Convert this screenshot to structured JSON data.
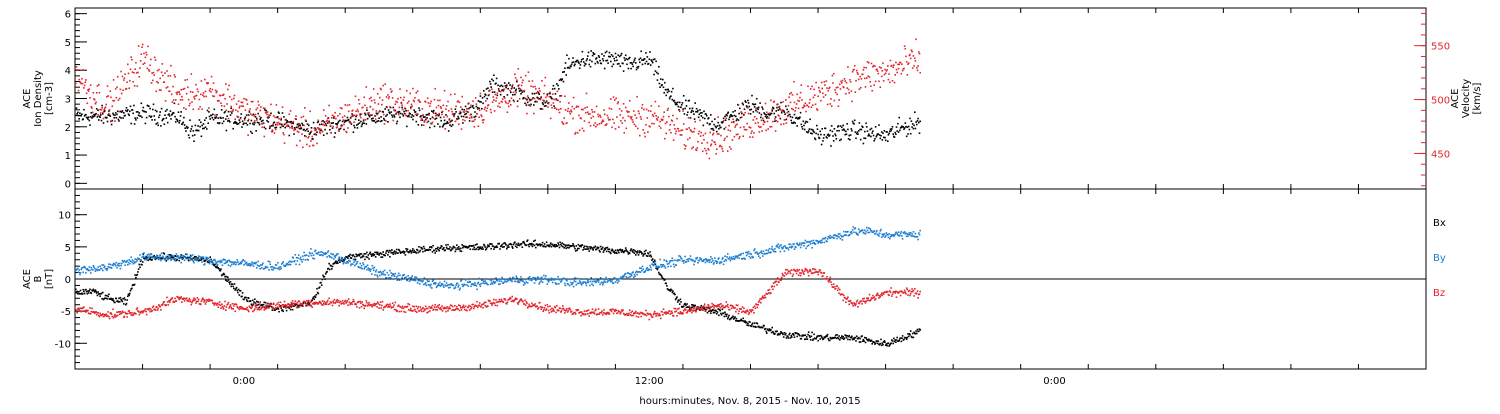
{
  "footer": {
    "xlabel": "hours:minutes, Nov.  8, 2015 - Nov. 10, 2015"
  },
  "x_axis": {
    "range_hours": [
      -5,
      35
    ],
    "ticks": [
      {
        "at": 0,
        "label": "0:00"
      },
      {
        "at": 12,
        "label": "12:00"
      },
      {
        "at": 24,
        "label": "0:00"
      }
    ],
    "minor_every_hours": 2
  },
  "colors": {
    "black": "#000000",
    "red": "#e3242b",
    "blue": "#1f7fd1",
    "axis": "#000000"
  },
  "chart_data": [
    {
      "type": "scatter",
      "panel": "top",
      "ylabel": [
        "ACE",
        "Ion Density",
        "[cm-3]"
      ],
      "ylim": [
        -0.2,
        6.2
      ],
      "yticks": [
        0,
        1,
        2,
        3,
        4,
        5,
        6
      ],
      "y2label": [
        "ACE",
        "Velocity",
        "[km/s]"
      ],
      "y2lim": [
        417,
        585
      ],
      "y2ticks": [
        450,
        500,
        550
      ],
      "series": [
        {
          "axis": "left",
          "color": "black",
          "noise": 0.28,
          "x": [
            -5,
            -4,
            -3,
            -2,
            -1.5,
            -1,
            0,
            1,
            2,
            3,
            4,
            5,
            6,
            7,
            7.3,
            8,
            8.5,
            9,
            9.3,
            9.5,
            10,
            11,
            11.3,
            11.6,
            12,
            12.5,
            13,
            14,
            15,
            15.5,
            16,
            17,
            18,
            19,
            19.5,
            20
          ],
          "y": [
            2.4,
            2.4,
            2.5,
            2.4,
            1.8,
            2.3,
            2.3,
            2.2,
            1.9,
            2.2,
            2.4,
            2.5,
            2.2,
            2.8,
            3.5,
            3.3,
            3.0,
            2.9,
            3.4,
            4.1,
            4.4,
            4.4,
            4.2,
            4.3,
            4.4,
            3.2,
            2.7,
            2.1,
            2.8,
            2.5,
            2.6,
            1.7,
            1.9,
            1.7,
            2.0,
            2.2
          ]
        },
        {
          "axis": "right",
          "color": "red",
          "noise": 14,
          "x": [
            -5,
            -4.5,
            -4,
            -3,
            -2,
            -1,
            0,
            1,
            2,
            3,
            4,
            5,
            6,
            7,
            7.5,
            8,
            8.5,
            9,
            9.5,
            10,
            11,
            12,
            13,
            14,
            15,
            16,
            16.5,
            17,
            18,
            19,
            20
          ],
          "y": [
            525,
            505,
            495,
            540,
            505,
            510,
            490,
            480,
            470,
            485,
            500,
            495,
            490,
            492,
            500,
            510,
            505,
            500,
            490,
            487,
            484,
            486,
            470,
            465,
            480,
            492,
            500,
            504,
            520,
            525,
            538
          ]
        }
      ]
    },
    {
      "type": "scatter",
      "panel": "bottom",
      "ylabel": [
        "ACE",
        "B",
        "[nT]"
      ],
      "ylim": [
        -14,
        14
      ],
      "yticks": [
        -10,
        -5,
        0,
        5,
        10
      ],
      "zero_line": true,
      "series": [
        {
          "name": "Bx",
          "color": "black",
          "noise": 0.45,
          "x": [
            -5,
            -4.5,
            -4,
            -3.5,
            -3,
            -2,
            -1,
            0,
            1,
            2,
            2.5,
            3,
            4,
            5,
            6,
            7,
            8,
            9,
            10,
            11,
            11.5,
            12,
            12.5,
            13,
            14,
            15,
            16,
            17,
            18,
            19,
            20
          ],
          "y": [
            -2,
            -1.8,
            -3,
            -3.5,
            3.5,
            3.5,
            3,
            -3,
            -4.5,
            -3.5,
            2,
            3.5,
            4,
            4.5,
            5,
            5,
            5.5,
            5.5,
            5,
            4.5,
            4.5,
            4,
            -1,
            -4,
            -5,
            -7,
            -8.5,
            -9,
            -9,
            -10,
            -8
          ]
        },
        {
          "name": "By",
          "color": "blue",
          "noise": 0.55,
          "x": [
            -5,
            -4,
            -3,
            -2,
            -1,
            0,
            1,
            2,
            2.5,
            3,
            4,
            5,
            6,
            7,
            8,
            9,
            10,
            11,
            11.5,
            12,
            12.5,
            13,
            14,
            15,
            16,
            17,
            18,
            18.5,
            19,
            20
          ],
          "y": [
            1.5,
            2,
            3.5,
            3.5,
            3,
            2.5,
            2,
            4,
            4,
            3,
            1,
            0,
            -1,
            -0.5,
            0,
            0,
            -0.5,
            0,
            1,
            2,
            2.5,
            3,
            3,
            4,
            5,
            6,
            7.5,
            7.5,
            7,
            7
          ]
        },
        {
          "name": "Bz",
          "color": "red",
          "noise": 0.5,
          "x": [
            -5,
            -4.5,
            -4,
            -3,
            -2,
            -1,
            0,
            1,
            2,
            2.5,
            3,
            4,
            5,
            6,
            7,
            8,
            9,
            10,
            11,
            12,
            12.5,
            13,
            14,
            15,
            16,
            17,
            18,
            19,
            20
          ],
          "y": [
            -4.5,
            -5,
            -5.5,
            -5,
            -3,
            -3.5,
            -4.5,
            -4,
            -3.5,
            -3.5,
            -3.5,
            -4,
            -4.5,
            -4.5,
            -4,
            -3,
            -4.5,
            -5,
            -5,
            -5.5,
            -5,
            -5,
            -4,
            -5,
            1,
            1.5,
            -4,
            -2,
            -2
          ]
        }
      ]
    }
  ]
}
